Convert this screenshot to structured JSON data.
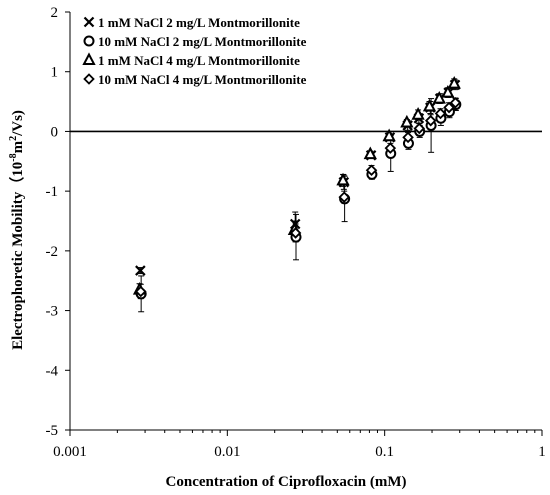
{
  "chart_data": {
    "type": "scatter",
    "xscale": "log",
    "xlim": [
      0.001,
      1
    ],
    "ylim": [
      -5,
      2
    ],
    "xlabel": "Concentration of  Ciprofloxacin (mM)",
    "ylabel_main": "Electrophoretic  Mobility（10",
    "ylabel_exp": "-8",
    "ylabel_unit": "m",
    "ylabel_exp2": "2",
    "ylabel_end": "/Vs)",
    "x_tick_labels": [
      "0.001",
      "0.01",
      "0.1",
      "1"
    ],
    "x_ticks": [
      0.001,
      0.01,
      0.1,
      1
    ],
    "y_tick_labels": [
      "-5",
      "-4",
      "-3",
      "-2",
      "-1",
      "0",
      "1",
      "2"
    ],
    "y_ticks": [
      -5,
      -4,
      -3,
      -2,
      -1,
      0,
      1,
      2
    ],
    "zero_line": 0,
    "legend_position": "top-left",
    "series": [
      {
        "name": "1 mM NaCl 2 mg/L Montmorillonite",
        "marker": "x",
        "points": [
          [
            0.0028,
            -2.33
          ],
          [
            0.027,
            -1.55
          ],
          [
            0.055,
            -0.85
          ],
          [
            0.082,
            -0.4
          ],
          [
            0.108,
            -0.1
          ],
          [
            0.14,
            0.1
          ],
          [
            0.165,
            0.22
          ],
          [
            0.195,
            0.4
          ],
          [
            0.225,
            0.55
          ],
          [
            0.255,
            0.65
          ],
          [
            0.28,
            0.78
          ]
        ],
        "errors": [
          0.05,
          0.2,
          0.12,
          0.05,
          0.05,
          0.08,
          0.08,
          0.1,
          0.08,
          0.08,
          0.08
        ]
      },
      {
        "name": "10 mM NaCl 2 mg/L Montmorillonite",
        "marker": "circle",
        "points": [
          [
            0.0028,
            -2.72
          ],
          [
            0.027,
            -1.77
          ],
          [
            0.055,
            -1.13
          ],
          [
            0.082,
            -0.72
          ],
          [
            0.108,
            -0.37
          ],
          [
            0.14,
            -0.2
          ],
          [
            0.165,
            0.0
          ],
          [
            0.195,
            0.1
          ],
          [
            0.225,
            0.22
          ],
          [
            0.255,
            0.33
          ],
          [
            0.28,
            0.45
          ]
        ],
        "errors": [
          0.3,
          0.38,
          0.38,
          0.08,
          0.3,
          0.1,
          0.1,
          0.45,
          0.12,
          0.1,
          0.1
        ]
      },
      {
        "name": "1 mM NaCl 4 mg/L Montmorillonite",
        "marker": "triangle",
        "points": [
          [
            0.0028,
            -2.65
          ],
          [
            0.027,
            -1.65
          ],
          [
            0.055,
            -0.82
          ],
          [
            0.082,
            -0.38
          ],
          [
            0.108,
            -0.08
          ],
          [
            0.14,
            0.15
          ],
          [
            0.165,
            0.28
          ],
          [
            0.195,
            0.42
          ],
          [
            0.225,
            0.55
          ],
          [
            0.255,
            0.65
          ],
          [
            0.28,
            0.8
          ]
        ],
        "errors": [
          0.1,
          0.15,
          0.1,
          0.05,
          0.05,
          0.05,
          0.08,
          0.08,
          0.08,
          0.08,
          0.08
        ]
      },
      {
        "name": "10 mM NaCl 4 mg/L Montmorillonite",
        "marker": "diamond",
        "points": [
          [
            0.0028,
            -2.68
          ],
          [
            0.027,
            -1.7
          ],
          [
            0.055,
            -1.1
          ],
          [
            0.082,
            -0.65
          ],
          [
            0.108,
            -0.28
          ],
          [
            0.14,
            -0.1
          ],
          [
            0.165,
            0.05
          ],
          [
            0.195,
            0.18
          ],
          [
            0.225,
            0.3
          ],
          [
            0.255,
            0.4
          ],
          [
            0.28,
            0.48
          ]
        ],
        "errors": [
          0.12,
          0.15,
          0.1,
          0.08,
          0.08,
          0.08,
          0.08,
          0.1,
          0.08,
          0.08,
          0.08
        ]
      }
    ]
  }
}
